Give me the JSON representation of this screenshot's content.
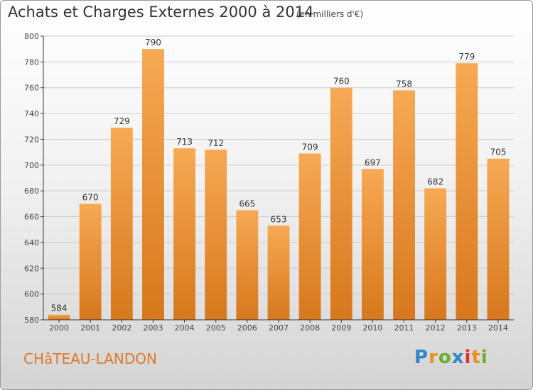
{
  "header": {
    "title": "Achats et Charges Externes 2000 à 2014",
    "subtitle": "(en milliers d'€)"
  },
  "footer": {
    "town": "CHâTEAU-LANDON",
    "brand": [
      "P",
      "r",
      "o",
      "x",
      "i",
      "t",
      "i"
    ],
    "brand_colors": [
      "#2e86c8",
      "#e8901e",
      "#6cae2a",
      "#2e86c8",
      "#d9342a",
      "#e8901e",
      "#6cae2a"
    ]
  },
  "colors": {
    "bar_light": "#f7a954",
    "bar_dark": "#d7781c",
    "grid": "#cccccc",
    "axis": "#333333"
  },
  "chart_data": {
    "type": "bar",
    "title": "Achats et Charges Externes 2000 à 2014",
    "subtitle": "(en milliers d'€)",
    "categories": [
      "2000",
      "2001",
      "2002",
      "2003",
      "2004",
      "2005",
      "2006",
      "2007",
      "2008",
      "2009",
      "2010",
      "2011",
      "2012",
      "2013",
      "2014"
    ],
    "values": [
      584,
      670,
      729,
      790,
      713,
      712,
      665,
      653,
      709,
      760,
      697,
      758,
      682,
      779,
      705
    ],
    "ylim": [
      580,
      800
    ],
    "yticks": [
      580,
      600,
      620,
      640,
      660,
      680,
      700,
      720,
      740,
      760,
      780,
      800
    ],
    "grid": true,
    "legend": "none"
  }
}
